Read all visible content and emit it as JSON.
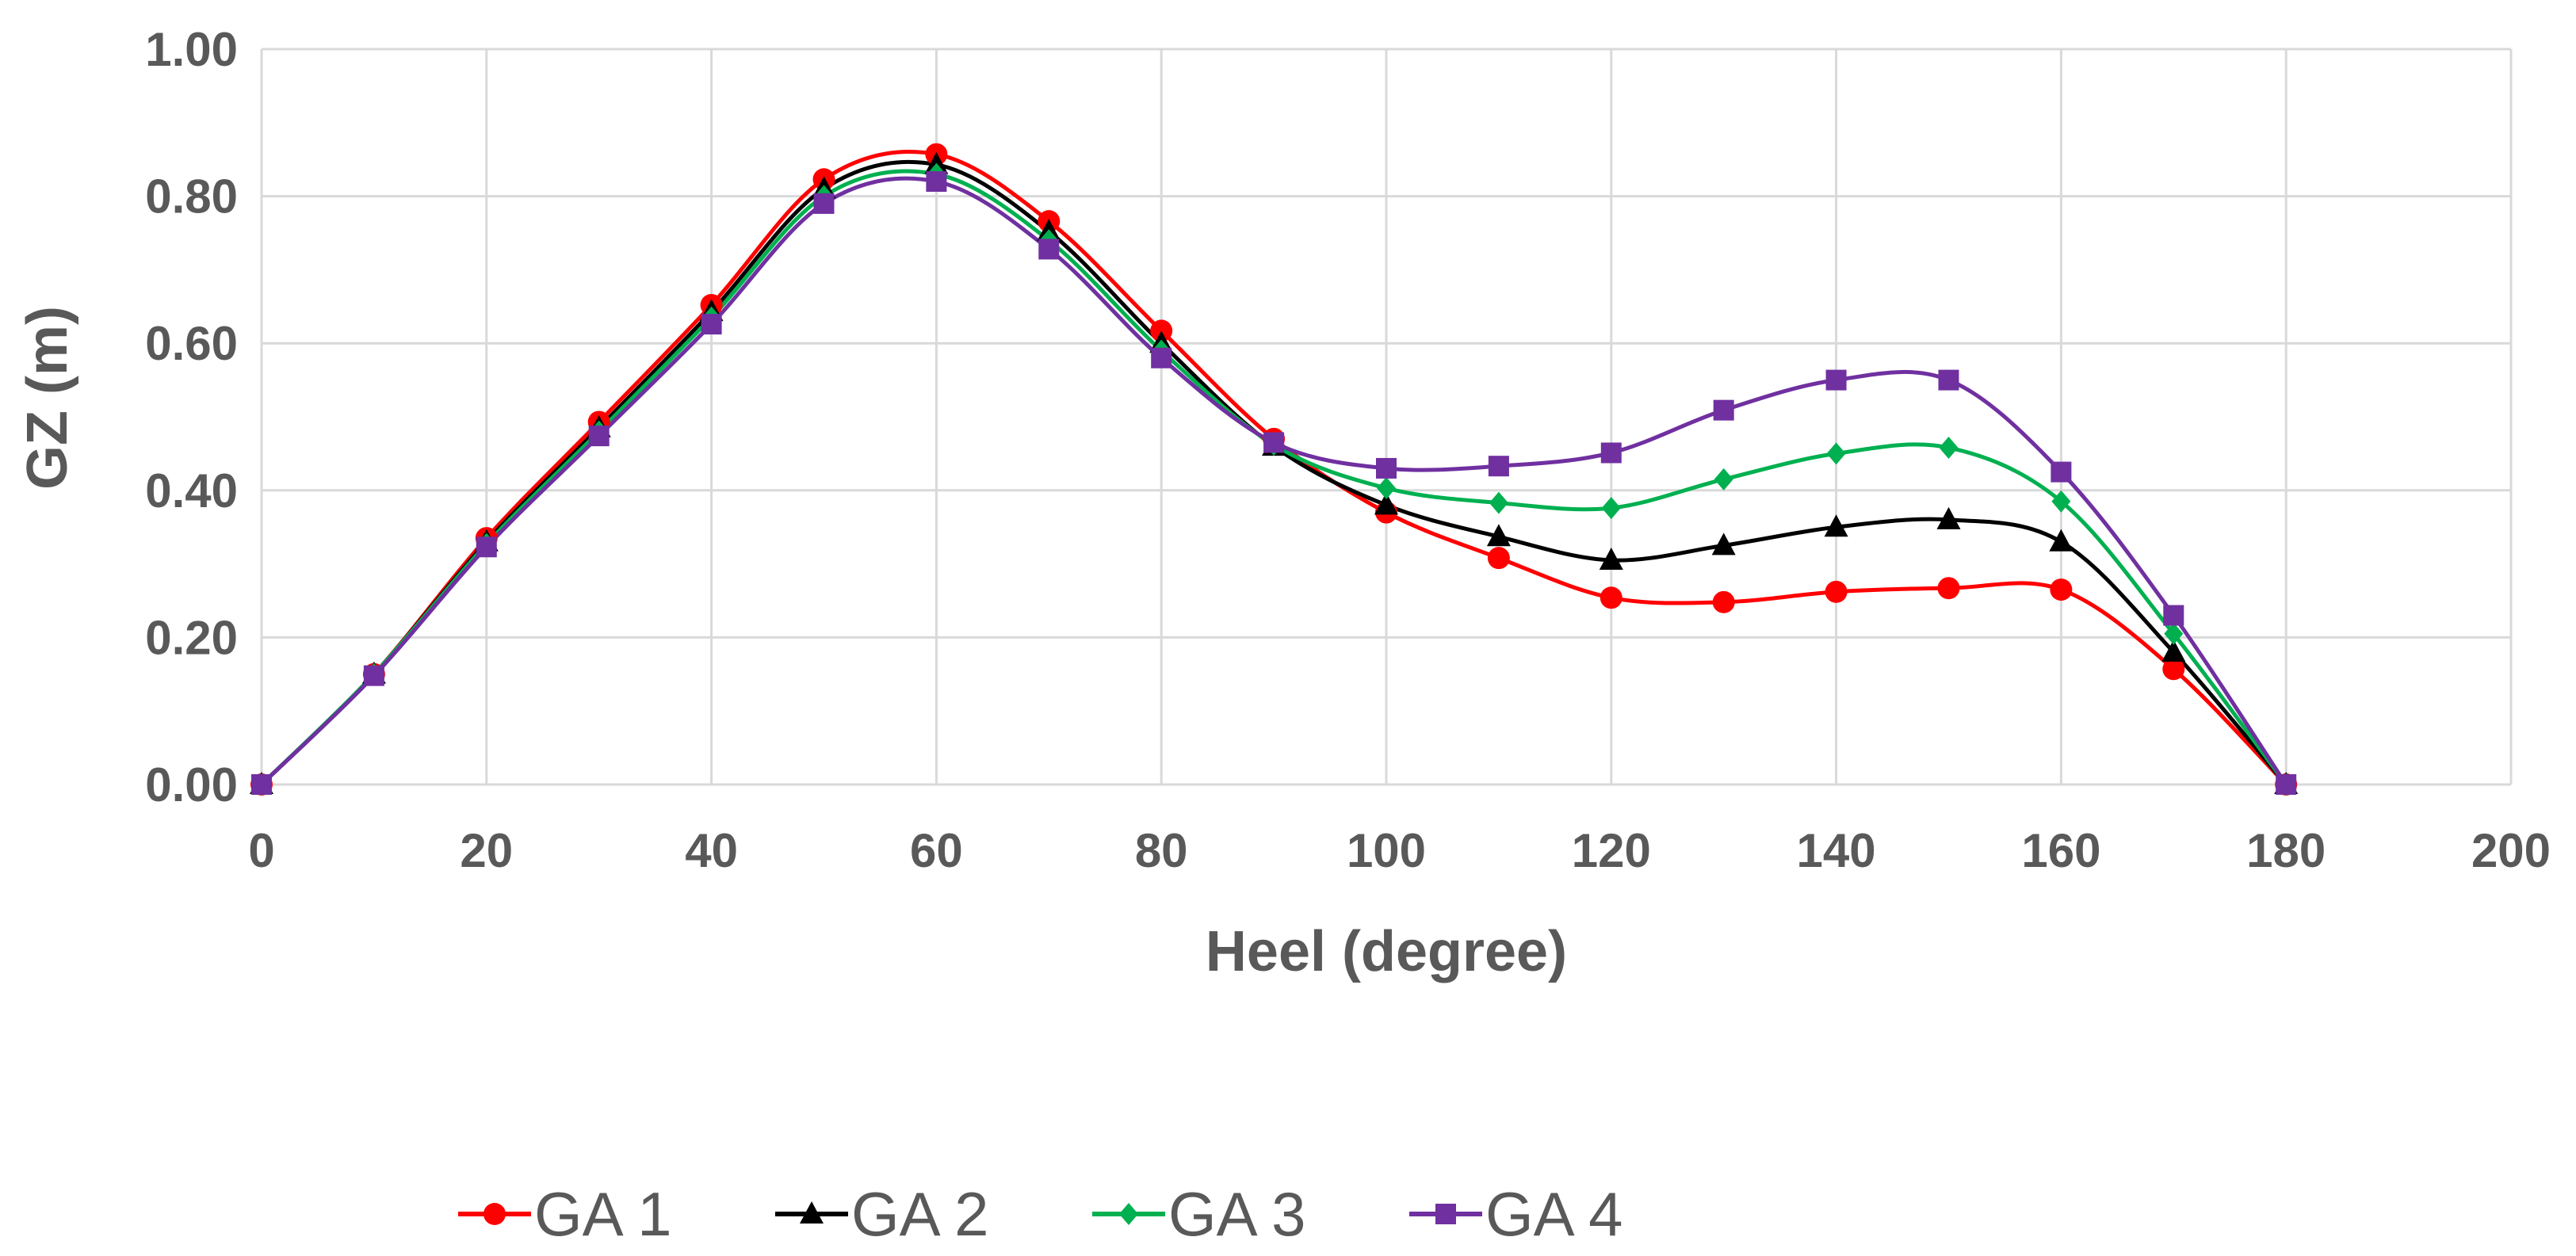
{
  "chart_data": {
    "type": "line",
    "title": "",
    "xlabel": "Heel (degree)",
    "ylabel": "GZ (m)",
    "xlim": [
      0,
      200
    ],
    "ylim": [
      0,
      1
    ],
    "xticks": [
      0,
      20,
      40,
      60,
      80,
      100,
      120,
      140,
      160,
      180,
      200
    ],
    "yticks": [
      0,
      0.2,
      0.4,
      0.6,
      0.8,
      1.0
    ],
    "xtick_labels": [
      "0",
      "20",
      "40",
      "60",
      "80",
      "100",
      "120",
      "140",
      "160",
      "180",
      "200"
    ],
    "ytick_labels": [
      "0.00",
      "0.20",
      "0.40",
      "0.60",
      "0.80",
      "1.00"
    ],
    "grid": true,
    "smooth": true,
    "legend_position": "bottom",
    "x": [
      0,
      10,
      20,
      30,
      40,
      50,
      60,
      70,
      80,
      90,
      100,
      110,
      120,
      130,
      140,
      150,
      160,
      170,
      180
    ],
    "series": [
      {
        "name": "GA 1",
        "color": "#ff0000",
        "marker": "circle",
        "values": [
          0.0,
          0.15,
          0.335,
          0.493,
          0.652,
          0.823,
          0.857,
          0.766,
          0.617,
          0.47,
          0.37,
          0.308,
          0.254,
          0.248,
          0.262,
          0.267,
          0.265,
          0.157,
          0.0
        ]
      },
      {
        "name": "GA 2",
        "color": "#000000",
        "marker": "triangle",
        "values": [
          0.0,
          0.15,
          0.33,
          0.485,
          0.643,
          0.81,
          0.843,
          0.752,
          0.6,
          0.46,
          0.38,
          0.337,
          0.305,
          0.325,
          0.35,
          0.36,
          0.33,
          0.18,
          0.0
        ]
      },
      {
        "name": "GA 3",
        "color": "#00b050",
        "marker": "diamond",
        "values": [
          0.0,
          0.15,
          0.327,
          0.48,
          0.635,
          0.8,
          0.83,
          0.74,
          0.59,
          0.462,
          0.403,
          0.383,
          0.376,
          0.415,
          0.45,
          0.458,
          0.385,
          0.205,
          0.0
        ]
      },
      {
        "name": "GA 4",
        "color": "#7030a0",
        "marker": "square",
        "values": [
          0.0,
          0.148,
          0.323,
          0.474,
          0.626,
          0.79,
          0.82,
          0.728,
          0.58,
          0.465,
          0.43,
          0.433,
          0.451,
          0.509,
          0.55,
          0.55,
          0.425,
          0.23,
          0.0
        ]
      }
    ]
  }
}
